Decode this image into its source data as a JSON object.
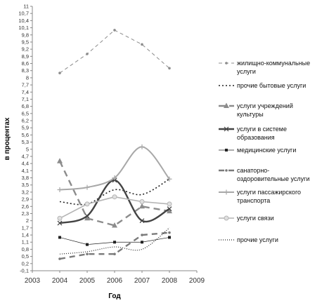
{
  "chart_data": {
    "type": "line",
    "xlabel": "Год",
    "ylabel": "в процентах",
    "xlim": [
      2003,
      2009
    ],
    "ylim": [
      -0.1,
      11
    ],
    "x_ticks": [
      "2003",
      "2004",
      "2005",
      "2006",
      "2007",
      "2008",
      "2009"
    ],
    "y_ticks": [
      "-0,1",
      "0,2",
      "0,5",
      "0,8",
      "1,1",
      "1,4",
      "1,7",
      "2",
      "2,3",
      "2,6",
      "2,9",
      "3,2",
      "3,5",
      "3,8",
      "4,1",
      "4,4",
      "4,7",
      "5",
      "5,3",
      "5,6",
      "5,9",
      "6,2",
      "6,5",
      "6,8",
      "7,1",
      "7,4",
      "7,7",
      "8",
      "8,3",
      "8,6",
      "8,9",
      "9,2",
      "9,5",
      "9,8",
      "10,1",
      "10,4",
      "10,7",
      "11"
    ],
    "x": [
      2004,
      2005,
      2006,
      2007,
      2008
    ],
    "legend_position": "right",
    "series": [
      {
        "name": "жилищно-коммунальные услуги",
        "values": [
          8.2,
          9.0,
          10.0,
          9.4,
          8.4
        ],
        "color": "#8c8c8c",
        "dash": "5,4",
        "width": 1,
        "marker": "dot",
        "smooth": false
      },
      {
        "name": "прочие бытовые услуги",
        "values": [
          2.8,
          2.7,
          3.3,
          3.1,
          3.75
        ],
        "color": "#222222",
        "dash": "2,3",
        "width": 1.6,
        "marker": "none",
        "smooth": true
      },
      {
        "name": "услуги учреждений культуры",
        "values": [
          4.5,
          2.1,
          1.8,
          2.6,
          2.4
        ],
        "color": "#8c8c8c",
        "dash": "9,6",
        "width": 2.4,
        "marker": "triangle",
        "smooth": false
      },
      {
        "name": "услуги в системе образования",
        "values": [
          1.9,
          2.2,
          3.7,
          2.0,
          2.5
        ],
        "color": "#444444",
        "dash": "",
        "width": 2.4,
        "marker": "x",
        "smooth": true
      },
      {
        "name": "медицинские услуги",
        "values": [
          1.3,
          1.0,
          1.1,
          1.1,
          1.3
        ],
        "color": "#222222",
        "dash": "",
        "width": 0.7,
        "marker": "square",
        "smooth": false
      },
      {
        "name": "санаторно-оздоровительные услуги",
        "values": [
          0.4,
          0.6,
          0.6,
          1.4,
          1.5
        ],
        "color": "#7a7a7a",
        "dash": "8,6",
        "width": 2.4,
        "marker": "dot",
        "smooth": false
      },
      {
        "name": "услуги пассажирского транспорта",
        "values": [
          3.3,
          3.4,
          3.8,
          5.1,
          3.75
        ],
        "color": "#a8a8a8",
        "dash": "",
        "width": 2,
        "marker": "plus",
        "smooth": true
      },
      {
        "name": "услуги связи",
        "values": [
          2.1,
          2.7,
          3.0,
          2.8,
          2.7
        ],
        "color": "#b4b4b4",
        "dash": "",
        "width": 1.6,
        "marker": "circle",
        "smooth": false
      },
      {
        "name": "прочие услуги",
        "values": [
          0.6,
          0.7,
          0.9,
          0.8,
          1.7
        ],
        "color": "#222222",
        "dash": "1,2",
        "width": 1.2,
        "marker": "none",
        "smooth": true
      }
    ],
    "legend_labels": [
      [
        "жилищно-коммунальные",
        "услуги"
      ],
      [
        "прочие бытовые услуги"
      ],
      [
        "услуги учреждений",
        "культуры"
      ],
      [
        "услуги в системе",
        "образования"
      ],
      [
        "медицинские услуги"
      ],
      [
        "санаторно-",
        "оздоровительные услуги"
      ],
      [
        "услуги пассажирского",
        "транспорта"
      ],
      [
        "услуги связи"
      ],
      [
        "прочие услуги"
      ]
    ]
  }
}
